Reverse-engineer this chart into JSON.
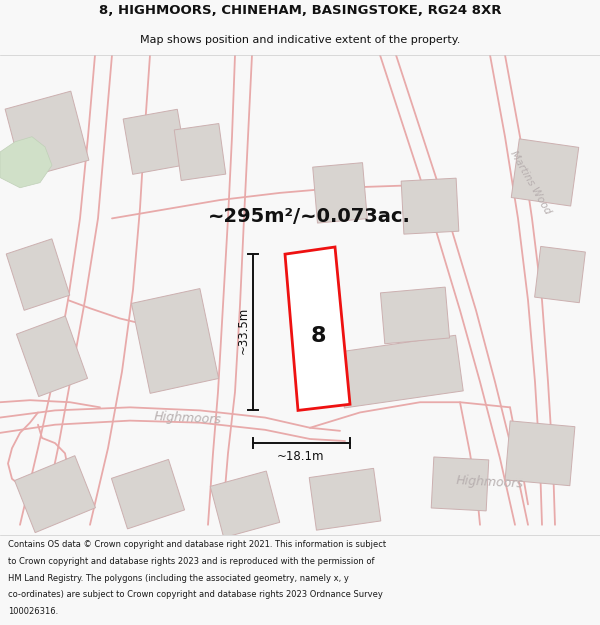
{
  "title_line1": "8, HIGHMOORS, CHINEHAM, BASINGSTOKE, RG24 8XR",
  "title_line2": "Map shows position and indicative extent of the property.",
  "area_text": "~295m²/~0.073ac.",
  "dim_width": "~18.1m",
  "dim_height": "~33.5m",
  "label_number": "8",
  "road_name1": "Highmoors",
  "road_name2": "Highmoors",
  "road_name3": "Martins Wood",
  "footer_text": "Contains OS data © Crown copyright and database right 2021. This information is subject to Crown copyright and database rights 2023 and is reproduced with the permission of HM Land Registry. The polygons (including the associated geometry, namely x, y co-ordinates) are subject to Crown copyright and database rights 2023 Ordnance Survey 100026316.",
  "bg_color": "#f8f8f8",
  "map_bg": "#f2f0ee",
  "plot_color": "#ee1111",
  "plot_fill": "#ffffff",
  "road_color": "#e8aaaa",
  "building_color": "#d8d4d0",
  "building_edge": "#ccb0b0",
  "dim_color": "#111111",
  "text_color": "#111111",
  "road_label_color": "#b8b0b0",
  "footer_bg": "#ffffff"
}
